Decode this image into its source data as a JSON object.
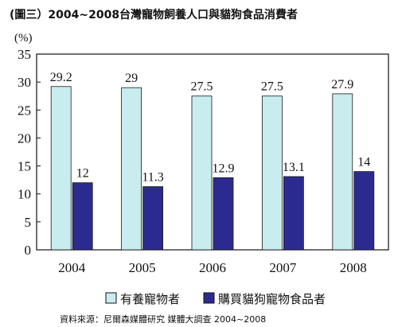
{
  "chart_data": {
    "type": "bar",
    "title": "(圖三）2004~2008台灣寵物飼養人口與貓狗食品消費者",
    "unit": "(%)",
    "categories": [
      "2004",
      "2005",
      "2006",
      "2007",
      "2008"
    ],
    "yticks": [
      "0",
      "5",
      "10",
      "15",
      "20",
      "25",
      "30",
      "35"
    ],
    "ylim": [
      0,
      35
    ],
    "grid": false,
    "legend_position": "bottom",
    "series": [
      {
        "name": "有養寵物者",
        "values": [
          29.2,
          29,
          27.5,
          27.5,
          27.9
        ],
        "labels": [
          "29.2",
          "29",
          "27.5",
          "27.5",
          "27.9"
        ],
        "color": "#c9ecee"
      },
      {
        "name": "購買貓狗寵物食品者",
        "values": [
          12,
          11.3,
          12.9,
          13.1,
          14
        ],
        "labels": [
          "12",
          "11.3",
          "12.9",
          "13.1",
          "14"
        ],
        "color": "#2b2b8f"
      }
    ],
    "source": "資料來源：尼爾森媒體研究  媒體大調查  2004~2008"
  }
}
